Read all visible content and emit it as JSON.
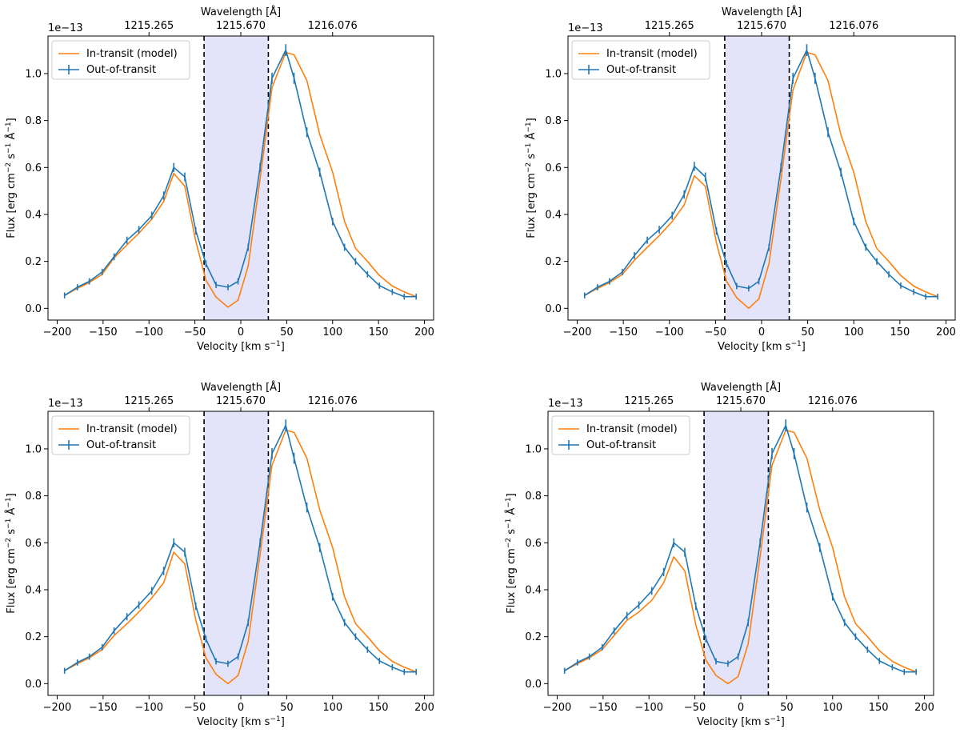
{
  "chart_data": [
    {
      "type": "line",
      "xlabel": "Velocity [km s$^{-1}$]",
      "xlabel_display": [
        "Velocity [km s",
        "−1",
        "]"
      ],
      "ylabel_display": [
        "Flux [erg cm",
        "−2",
        " s",
        "−1",
        " Å",
        "−1",
        "]"
      ],
      "top_axis_label": "Wavelength [Å]",
      "top_axis_ticks": [
        "1215.265",
        "1215.670",
        "1216.076"
      ],
      "top_axis_tick_velocity": [
        -100,
        0,
        100
      ],
      "y_offset_label": "1e−13",
      "xlim": [
        -210,
        210
      ],
      "ylim": [
        -0.05,
        1.16
      ],
      "xticks": [
        -200,
        -150,
        -100,
        -50,
        0,
        50,
        100,
        150,
        200
      ],
      "yticks": [
        "0.0",
        "0.2",
        "0.4",
        "0.6",
        "0.8",
        "1.0"
      ],
      "band": [
        -40,
        30
      ],
      "legend": "top-left",
      "x": [
        -192,
        -178,
        -165,
        -151,
        -138,
        -124,
        -111,
        -97,
        -84,
        -73,
        -61,
        -49,
        -38,
        -27,
        -14,
        -3,
        8,
        21,
        34,
        49,
        58,
        72,
        86,
        100,
        113,
        125,
        138,
        151,
        165,
        178,
        191
      ],
      "series": [
        {
          "name": "In-transit (model)",
          "color": "#ff7f0e",
          "values": [
            0.055,
            0.085,
            0.11,
            0.145,
            0.215,
            0.27,
            0.32,
            0.38,
            0.455,
            0.575,
            0.52,
            0.285,
            0.12,
            0.048,
            0.005,
            0.035,
            0.18,
            0.55,
            0.94,
            1.09,
            1.08,
            0.97,
            0.74,
            0.58,
            0.37,
            0.255,
            0.2,
            0.14,
            0.095,
            0.07,
            0.05
          ]
        },
        {
          "name": "Out-of-transit",
          "color": "#1f77b4",
          "errorbars": true,
          "values": [
            0.055,
            0.09,
            0.115,
            0.155,
            0.22,
            0.29,
            0.335,
            0.395,
            0.48,
            0.6,
            0.56,
            0.33,
            0.19,
            0.1,
            0.09,
            0.115,
            0.26,
            0.6,
            0.98,
            1.1,
            0.98,
            0.75,
            0.58,
            0.37,
            0.26,
            0.2,
            0.145,
            0.097,
            0.07,
            0.05,
            0.05
          ]
        }
      ]
    },
    {
      "type": "line",
      "xlabel_display": [
        "Velocity [km s",
        "−1",
        "]"
      ],
      "ylabel_display": [
        "Flux [erg cm",
        "−2",
        " s",
        "−1",
        " Å",
        "−1",
        "]"
      ],
      "top_axis_label": "Wavelength [Å]",
      "top_axis_ticks": [
        "1215.265",
        "1215.670",
        "1216.076"
      ],
      "top_axis_tick_velocity": [
        -100,
        0,
        100
      ],
      "y_offset_label": "1e−13",
      "xlim": [
        -210,
        210
      ],
      "ylim": [
        -0.05,
        1.16
      ],
      "xticks": [
        -200,
        -150,
        -100,
        -50,
        0,
        50,
        100,
        150,
        200
      ],
      "yticks": [
        "0.0",
        "0.2",
        "0.4",
        "0.6",
        "0.8",
        "1.0"
      ],
      "band": [
        -40,
        30
      ],
      "legend": "top-left",
      "x": [
        -192,
        -178,
        -165,
        -151,
        -138,
        -124,
        -111,
        -97,
        -84,
        -73,
        -61,
        -49,
        -38,
        -27,
        -14,
        -3,
        8,
        21,
        34,
        49,
        58,
        72,
        86,
        100,
        113,
        125,
        138,
        151,
        165,
        178,
        191
      ],
      "series": [
        {
          "name": "In-transit (model)",
          "color": "#ff7f0e",
          "values": [
            0.055,
            0.085,
            0.11,
            0.145,
            0.205,
            0.26,
            0.31,
            0.37,
            0.44,
            0.565,
            0.52,
            0.28,
            0.115,
            0.045,
            0.0,
            0.04,
            0.19,
            0.55,
            0.93,
            1.09,
            1.08,
            0.97,
            0.74,
            0.58,
            0.37,
            0.255,
            0.2,
            0.14,
            0.095,
            0.07,
            0.05
          ]
        },
        {
          "name": "Out-of-transit",
          "color": "#1f77b4",
          "errorbars": true,
          "values": [
            0.055,
            0.09,
            0.115,
            0.155,
            0.225,
            0.29,
            0.335,
            0.395,
            0.485,
            0.605,
            0.56,
            0.33,
            0.19,
            0.095,
            0.085,
            0.115,
            0.26,
            0.6,
            0.98,
            1.1,
            0.98,
            0.75,
            0.58,
            0.37,
            0.26,
            0.2,
            0.145,
            0.097,
            0.07,
            0.05,
            0.05
          ]
        }
      ]
    },
    {
      "type": "line",
      "xlabel_display": [
        "Velocity [km s",
        "−1",
        "]"
      ],
      "ylabel_display": [
        "Flux [erg cm",
        "−2",
        " s",
        "−1",
        " Å",
        "−1",
        "]"
      ],
      "top_axis_label": "Wavelength [Å]",
      "top_axis_ticks": [
        "1215.265",
        "1215.670",
        "1216.076"
      ],
      "top_axis_tick_velocity": [
        -100,
        0,
        100
      ],
      "y_offset_label": "1e−13",
      "xlim": [
        -210,
        210
      ],
      "ylim": [
        -0.05,
        1.16
      ],
      "xticks": [
        -200,
        -150,
        -100,
        -50,
        0,
        50,
        100,
        150,
        200
      ],
      "yticks": [
        "0.0",
        "0.2",
        "0.4",
        "0.6",
        "0.8",
        "1.0"
      ],
      "band": [
        -40,
        30
      ],
      "legend": "top-left",
      "x": [
        -192,
        -178,
        -165,
        -151,
        -138,
        -124,
        -111,
        -97,
        -84,
        -73,
        -61,
        -49,
        -38,
        -27,
        -14,
        -3,
        8,
        21,
        34,
        49,
        58,
        72,
        86,
        100,
        113,
        125,
        138,
        151,
        165,
        178,
        191
      ],
      "series": [
        {
          "name": "In-transit (model)",
          "color": "#ff7f0e",
          "values": [
            0.055,
            0.085,
            0.11,
            0.145,
            0.205,
            0.255,
            0.305,
            0.365,
            0.43,
            0.56,
            0.51,
            0.27,
            0.11,
            0.04,
            0.0,
            0.035,
            0.18,
            0.55,
            0.93,
            1.08,
            1.07,
            0.96,
            0.74,
            0.58,
            0.37,
            0.255,
            0.2,
            0.14,
            0.095,
            0.07,
            0.05
          ]
        },
        {
          "name": "Out-of-transit",
          "color": "#1f77b4",
          "errorbars": true,
          "values": [
            0.055,
            0.09,
            0.115,
            0.155,
            0.225,
            0.285,
            0.335,
            0.395,
            0.48,
            0.6,
            0.56,
            0.33,
            0.19,
            0.095,
            0.085,
            0.115,
            0.26,
            0.6,
            0.98,
            1.1,
            0.96,
            0.75,
            0.58,
            0.37,
            0.26,
            0.2,
            0.145,
            0.097,
            0.07,
            0.05,
            0.05
          ]
        }
      ]
    },
    {
      "type": "line",
      "xlabel_display": [
        "Velocity [km s",
        "−1",
        "]"
      ],
      "ylabel_display": [
        "Flux [erg cm",
        "−2",
        " s",
        "−1",
        " Å",
        "−1",
        "]"
      ],
      "top_axis_label": "Wavelength [Å]",
      "top_axis_ticks": [
        "1215.265",
        "1215.670",
        "1216.076"
      ],
      "top_axis_tick_velocity": [
        -100,
        0,
        100
      ],
      "y_offset_label": "1e−13",
      "xlim": [
        -210,
        210
      ],
      "ylim": [
        -0.05,
        1.16
      ],
      "xticks": [
        -200,
        -150,
        -100,
        -50,
        0,
        50,
        100,
        150,
        200
      ],
      "yticks": [
        "0.0",
        "0.2",
        "0.4",
        "0.6",
        "0.8",
        "1.0"
      ],
      "band": [
        -40,
        30
      ],
      "legend": "top-left",
      "x": [
        -192,
        -178,
        -165,
        -151,
        -138,
        -124,
        -111,
        -97,
        -84,
        -73,
        -61,
        -49,
        -38,
        -27,
        -14,
        -3,
        8,
        21,
        34,
        49,
        58,
        72,
        86,
        100,
        113,
        125,
        138,
        151,
        165,
        178,
        191
      ],
      "series": [
        {
          "name": "In-transit (model)",
          "color": "#ff7f0e",
          "values": [
            0.055,
            0.085,
            0.11,
            0.145,
            0.205,
            0.27,
            0.305,
            0.355,
            0.43,
            0.54,
            0.48,
            0.25,
            0.1,
            0.035,
            0.0,
            0.03,
            0.17,
            0.54,
            0.93,
            1.08,
            1.07,
            0.96,
            0.74,
            0.58,
            0.37,
            0.255,
            0.2,
            0.14,
            0.095,
            0.07,
            0.05
          ]
        },
        {
          "name": "Out-of-transit",
          "color": "#1f77b4",
          "errorbars": true,
          "values": [
            0.055,
            0.09,
            0.115,
            0.155,
            0.225,
            0.29,
            0.335,
            0.395,
            0.475,
            0.6,
            0.56,
            0.33,
            0.19,
            0.095,
            0.085,
            0.115,
            0.26,
            0.6,
            0.98,
            1.1,
            0.98,
            0.75,
            0.58,
            0.37,
            0.26,
            0.2,
            0.145,
            0.097,
            0.07,
            0.05,
            0.05
          ]
        }
      ]
    }
  ]
}
